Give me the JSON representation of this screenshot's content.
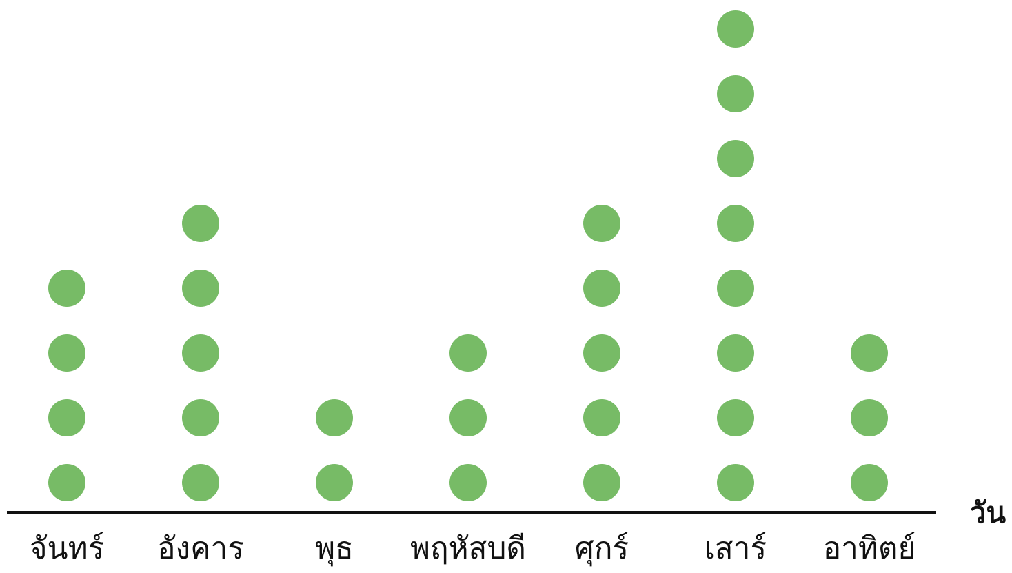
{
  "chart_data": {
    "type": "dot",
    "xlabel": "วัน",
    "categories": [
      "จันทร์",
      "อังคาร",
      "พุธ",
      "พฤหัสบดี",
      "ศุกร์",
      "เสาร์",
      "อาทิตย์"
    ],
    "values": [
      4,
      5,
      2,
      3,
      5,
      8,
      3
    ],
    "dot_color": "#77bb66",
    "axis_color": "#111111",
    "grid": false,
    "legend": "none"
  }
}
